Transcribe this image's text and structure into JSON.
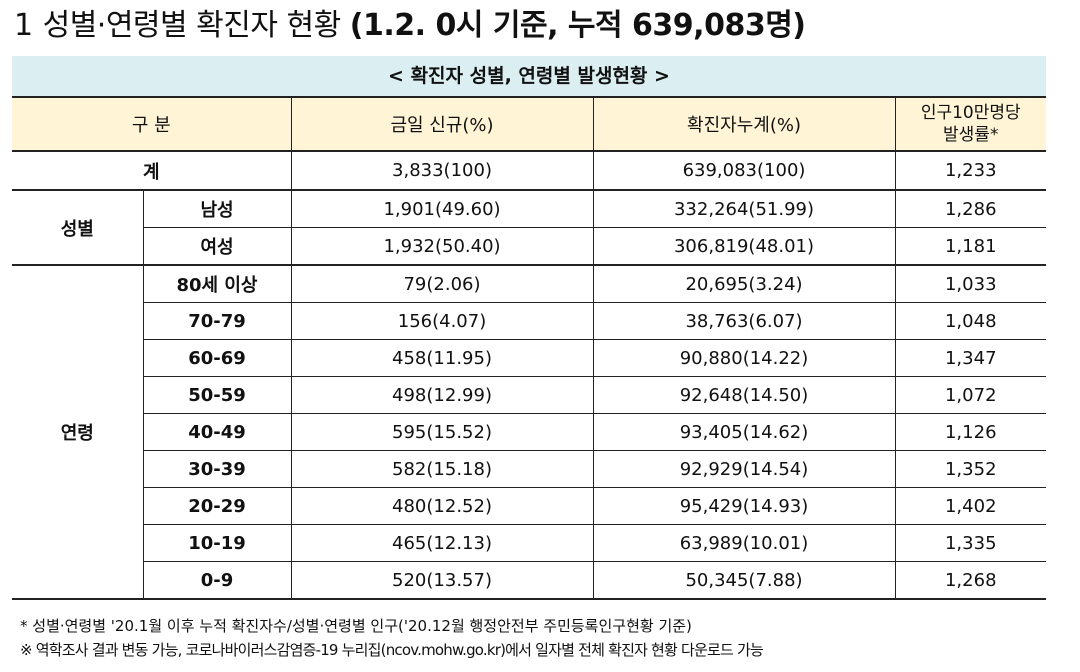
{
  "page": {
    "section_number": "1",
    "title_normal": "성별·연령별 확진자 현황",
    "title_bold": "(1.2. 0시 기준, 누적 639,083명)"
  },
  "table": {
    "caption": "< 확진자 성별, 연령별 발생현황 >",
    "headers": [
      "구 분",
      "금일 신규(%)",
      "확진자누계(%)",
      "인구10만명당",
      "발생률*"
    ],
    "total": {
      "label": "계",
      "new": "3,833(100)",
      "cumulative": "639,083(100)",
      "rate": "1,233"
    },
    "sex_group": "성별",
    "sex_rows": [
      {
        "label": "남성",
        "new": "1,901(49.60)",
        "cumulative": "332,264(51.99)",
        "rate": "1,286"
      },
      {
        "label": "여성",
        "new": "1,932(50.40)",
        "cumulative": "306,819(48.01)",
        "rate": "1,181"
      }
    ],
    "age_group": "연령",
    "age_rows": [
      {
        "label": "80세 이상",
        "new": "79(2.06)",
        "cumulative": "20,695(3.24)",
        "rate": "1,033"
      },
      {
        "label": "70-79",
        "new": "156(4.07)",
        "cumulative": "38,763(6.07)",
        "rate": "1,048"
      },
      {
        "label": "60-69",
        "new": "458(11.95)",
        "cumulative": "90,880(14.22)",
        "rate": "1,347"
      },
      {
        "label": "50-59",
        "new": "498(12.99)",
        "cumulative": "92,648(14.50)",
        "rate": "1,072"
      },
      {
        "label": "40-49",
        "new": "595(15.52)",
        "cumulative": "93,405(14.62)",
        "rate": "1,126"
      },
      {
        "label": "30-39",
        "new": "582(15.18)",
        "cumulative": "92,929(14.54)",
        "rate": "1,352"
      },
      {
        "label": "20-29",
        "new": "480(12.52)",
        "cumulative": "95,429(14.93)",
        "rate": "1,402"
      },
      {
        "label": "10-19",
        "new": "465(12.13)",
        "cumulative": "63,989(10.01)",
        "rate": "1,335"
      },
      {
        "label": "0-9",
        "new": "520(13.57)",
        "cumulative": "50,345(7.88)",
        "rate": "1,268"
      }
    ]
  },
  "notes": [
    "* 성별·연령별 '20.1월 이후 누적 확진자수/성별·연령별 인구('20.12월 행정안전부 주민등록인구현황 기준)",
    "※ 역학조사 결과 변동 가능, 코로나바이러스감염증-19 누리집(ncov.mohw.go.kr)에서 일자별 전체 확진자 현황 다운로드 가능"
  ]
}
